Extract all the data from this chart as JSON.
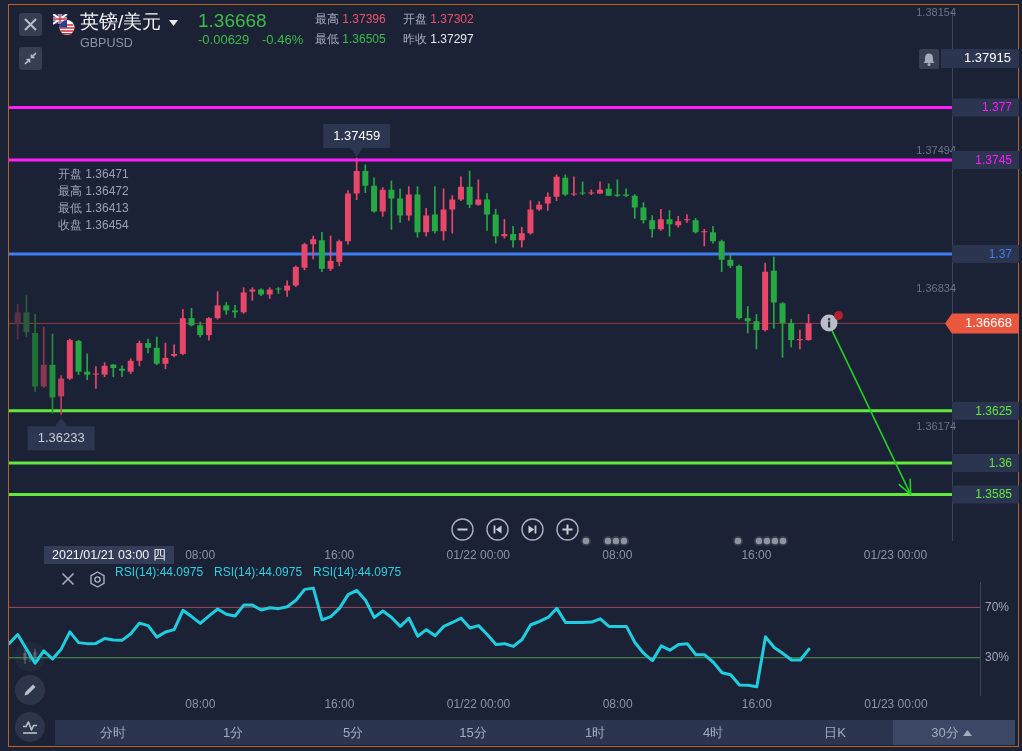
{
  "chart_data": [
    {
      "type": "candlestick",
      "title": "英镑/美元",
      "subtitle": "GBPUSD",
      "x": [
        "2021-01-20T21:30",
        "2021-01-20T22:00",
        "2021-01-20T22:30",
        "2021-01-20T23:00",
        "2021-01-20T23:30",
        "2021-01-21T00:00",
        "2021-01-21T00:30",
        "2021-01-21T01:00",
        "2021-01-21T01:30",
        "2021-01-21T02:00",
        "2021-01-21T02:30",
        "2021-01-21T03:00",
        "2021-01-21T03:30",
        "2021-01-21T04:00",
        "2021-01-21T04:30",
        "2021-01-21T05:00",
        "2021-01-21T05:30",
        "2021-01-21T06:00",
        "2021-01-21T06:30",
        "2021-01-21T07:00",
        "2021-01-21T07:30",
        "2021-01-21T08:00",
        "2021-01-21T08:30",
        "2021-01-21T09:00",
        "2021-01-21T09:30",
        "2021-01-21T10:00",
        "2021-01-21T10:30",
        "2021-01-21T11:00",
        "2021-01-21T11:30",
        "2021-01-21T12:00",
        "2021-01-21T12:30",
        "2021-01-21T13:00",
        "2021-01-21T13:30",
        "2021-01-21T14:00",
        "2021-01-21T14:30",
        "2021-01-21T15:00",
        "2021-01-21T15:30",
        "2021-01-21T16:00",
        "2021-01-21T16:30",
        "2021-01-21T17:00",
        "2021-01-21T17:30",
        "2021-01-21T18:00",
        "2021-01-21T18:30",
        "2021-01-21T19:00",
        "2021-01-21T19:30",
        "2021-01-21T20:00",
        "2021-01-21T20:30",
        "2021-01-21T21:00",
        "2021-01-21T21:30",
        "2021-01-21T22:00",
        "2021-01-21T22:30",
        "2021-01-21T23:00",
        "2021-01-21T23:30",
        "2021-01-22T00:00",
        "2021-01-22T00:30",
        "2021-01-22T01:00",
        "2021-01-22T01:30",
        "2021-01-22T02:00",
        "2021-01-22T02:30",
        "2021-01-22T03:00",
        "2021-01-22T03:30",
        "2021-01-22T04:00",
        "2021-01-22T04:30",
        "2021-01-22T05:00",
        "2021-01-22T05:30",
        "2021-01-22T06:00",
        "2021-01-22T06:30",
        "2021-01-22T07:00",
        "2021-01-22T07:30",
        "2021-01-22T08:00",
        "2021-01-22T08:30",
        "2021-01-22T09:00",
        "2021-01-22T09:30",
        "2021-01-22T10:00",
        "2021-01-22T10:30",
        "2021-01-22T11:00",
        "2021-01-22T11:30",
        "2021-01-22T12:00",
        "2021-01-22T12:30",
        "2021-01-22T13:00",
        "2021-01-22T13:30",
        "2021-01-22T14:00",
        "2021-01-22T14:30",
        "2021-01-22T15:00",
        "2021-01-22T15:30",
        "2021-01-22T16:00",
        "2021-01-22T16:30",
        "2021-01-22T17:00",
        "2021-01-22T17:30",
        "2021-01-22T18:00",
        "2021-01-22T18:30",
        "2021-01-22T19:00"
      ],
      "ohlc": [
        [
          1.36664,
          1.36759,
          1.36593,
          1.36721
        ],
        [
          1.36721,
          1.36801,
          1.36603,
          1.36626
        ],
        [
          1.36622,
          1.36711,
          1.36343,
          1.36366
        ],
        [
          1.36366,
          1.3665,
          1.36361,
          1.3647
        ],
        [
          1.3647,
          1.36617,
          1.36238,
          1.36314
        ],
        [
          1.36319,
          1.36418,
          1.36233,
          1.36404
        ],
        [
          1.36404,
          1.36593,
          1.36399,
          1.36588
        ],
        [
          1.36584,
          1.36588,
          1.36423,
          1.36437
        ],
        [
          1.36437,
          1.36522,
          1.36399,
          1.36423
        ],
        [
          1.36423,
          1.36461,
          1.36357,
          1.36428
        ],
        [
          1.36423,
          1.3648,
          1.36413,
          1.36465
        ],
        [
          1.36471,
          1.36472,
          1.36413,
          1.36454
        ],
        [
          1.36451,
          1.36465,
          1.36413,
          1.36442
        ],
        [
          1.36437,
          1.36499,
          1.36428,
          1.36489
        ],
        [
          1.36489,
          1.36584,
          1.36465,
          1.36574
        ],
        [
          1.36574,
          1.36593,
          1.36527,
          1.36551
        ],
        [
          1.36551,
          1.36603,
          1.3647,
          1.36475
        ],
        [
          1.36475,
          1.36574,
          1.36451,
          1.36503
        ],
        [
          1.36513,
          1.36565,
          1.36508,
          1.36522
        ],
        [
          1.36522,
          1.36735,
          1.36518,
          1.36693
        ],
        [
          1.36693,
          1.3674,
          1.36655,
          1.36659
        ],
        [
          1.36659,
          1.36674,
          1.36603,
          1.36612
        ],
        [
          1.36612,
          1.36697,
          1.36588,
          1.36693
        ],
        [
          1.36693,
          1.3682,
          1.36688,
          1.36754
        ],
        [
          1.36754,
          1.36768,
          1.36711,
          1.3673
        ],
        [
          1.3673,
          1.36754,
          1.36697,
          1.36721
        ],
        [
          1.36721,
          1.36839,
          1.36716,
          1.36816
        ],
        [
          1.3682,
          1.36839,
          1.36778,
          1.3683
        ],
        [
          1.3683,
          1.36834,
          1.36801,
          1.36806
        ],
        [
          1.36806,
          1.36839,
          1.36787,
          1.3683
        ],
        [
          1.36834,
          1.36839,
          1.36811,
          1.3683
        ],
        [
          1.36825,
          1.36872,
          1.36797,
          1.36849
        ],
        [
          1.36849,
          1.36943,
          1.36844,
          1.36938
        ],
        [
          1.36934,
          1.37052,
          1.36924,
          1.37047
        ],
        [
          1.37047,
          1.37085,
          1.36976,
          1.37071
        ],
        [
          1.37066,
          1.37104,
          1.36915,
          1.36929
        ],
        [
          1.36929,
          1.37085,
          1.3692,
          1.36967
        ],
        [
          1.36962,
          1.37066,
          1.36943,
          1.37061
        ],
        [
          1.37061,
          1.37303,
          1.37047,
          1.37289
        ],
        [
          1.37289,
          1.37459,
          1.3726,
          1.37397
        ],
        [
          1.37397,
          1.37426,
          1.37293,
          1.37326
        ],
        [
          1.37326,
          1.37364,
          1.37199,
          1.37203
        ],
        [
          1.37203,
          1.37317,
          1.3718,
          1.37307
        ],
        [
          1.37307,
          1.3735,
          1.37118,
          1.37265
        ],
        [
          1.37265,
          1.37312,
          1.37151,
          1.37184
        ],
        [
          1.37184,
          1.37322,
          1.37161,
          1.37284
        ],
        [
          1.37284,
          1.37322,
          1.3708,
          1.37104
        ],
        [
          1.37104,
          1.37218,
          1.37085,
          1.37184
        ],
        [
          1.37189,
          1.37322,
          1.37099,
          1.37109
        ],
        [
          1.37109,
          1.37312,
          1.37066,
          1.37213
        ],
        [
          1.37213,
          1.37279,
          1.37099,
          1.3726
        ],
        [
          1.3726,
          1.37369,
          1.37255,
          1.37322
        ],
        [
          1.37322,
          1.37397,
          1.37222,
          1.37236
        ],
        [
          1.37236,
          1.37355,
          1.37232,
          1.3726
        ],
        [
          1.3726,
          1.37289,
          1.37113,
          1.37189
        ],
        [
          1.37189,
          1.37213,
          1.37052,
          1.37085
        ],
        [
          1.37085,
          1.37166,
          1.37076,
          1.37095
        ],
        [
          1.37095,
          1.37132,
          1.37033,
          1.37066
        ],
        [
          1.37066,
          1.37128,
          1.37033,
          1.37099
        ],
        [
          1.37099,
          1.37255,
          1.37095,
          1.37213
        ],
        [
          1.37213,
          1.37251,
          1.37208,
          1.37236
        ],
        [
          1.37241,
          1.37293,
          1.37208,
          1.37274
        ],
        [
          1.37274,
          1.37378,
          1.37255,
          1.37369
        ],
        [
          1.37364,
          1.37378,
          1.37279,
          1.37284
        ],
        [
          1.37284,
          1.37369,
          1.37279,
          1.37289
        ],
        [
          1.37293,
          1.37345,
          1.37284,
          1.37289
        ],
        [
          1.37289,
          1.37307,
          1.37284,
          1.37293
        ],
        [
          1.37289,
          1.37345,
          1.37289,
          1.37307
        ],
        [
          1.37312,
          1.37336,
          1.37279,
          1.37279
        ],
        [
          1.37284,
          1.37355,
          1.37274,
          1.37279
        ],
        [
          1.37284,
          1.37312,
          1.37274,
          1.37279
        ],
        [
          1.37279,
          1.37284,
          1.3717,
          1.37222
        ],
        [
          1.37222,
          1.37246,
          1.37147,
          1.37161
        ],
        [
          1.37161,
          1.37184,
          1.3708,
          1.37118
        ],
        [
          1.37118,
          1.37213,
          1.37113,
          1.37166
        ],
        [
          1.37166,
          1.37208,
          1.37085,
          1.37142
        ],
        [
          1.37137,
          1.3718,
          1.37128,
          1.37156
        ],
        [
          1.37161,
          1.37189,
          1.37151,
          1.37166
        ],
        [
          1.37161,
          1.3717,
          1.37099,
          1.37104
        ],
        [
          1.37104,
          1.37118,
          1.37038,
          1.37109
        ],
        [
          1.37104,
          1.37132,
          1.37052,
          1.37061
        ],
        [
          1.37061,
          1.37066,
          1.36915,
          1.36972
        ],
        [
          1.36972,
          1.37,
          1.36934,
          1.36943
        ],
        [
          1.36943,
          1.36948,
          1.36688,
          1.36693
        ],
        [
          1.36693,
          1.36749,
          1.36622,
          1.36678
        ],
        [
          1.36678,
          1.36711,
          1.36546,
          1.36636
        ],
        [
          1.36636,
          1.36957,
          1.36631,
          1.36915
        ],
        [
          1.3692,
          1.36986,
          1.36645,
          1.36768
        ],
        [
          1.36764,
          1.36768,
          1.36505,
          1.36669
        ],
        [
          1.36669,
          1.36688,
          1.36555,
          1.36588
        ],
        [
          1.36588,
          1.36636,
          1.36546,
          1.36593
        ],
        [
          1.36588,
          1.36711,
          1.36588,
          1.36668
        ]
      ],
      "colors": [
        "#5e3044",
        "#2b5a3c",
        "#1f7036",
        "#8a3752",
        "#22903c",
        "#c0415f",
        "#e8476a",
        "#26a843",
        "#26a843",
        "#e8476a",
        "#e8476a",
        "#26a843",
        "#26a843",
        "#e8476a",
        "#e8476a",
        "#26a843",
        "#26a843",
        "#e8476a",
        "#e8476a",
        "#e8476a",
        "#26a843",
        "#26a843",
        "#e8476a",
        "#e8476a",
        "#26a843",
        "#26a843",
        "#e8476a",
        "#e8476a",
        "#26a843",
        "#e8476a",
        "#26a843",
        "#e8476a",
        "#e8476a",
        "#e8476a",
        "#e8476a",
        "#26a843",
        "#e8476a",
        "#e8476a",
        "#e8476a",
        "#e8476a",
        "#26a843",
        "#26a843",
        "#e8476a",
        "#26a843",
        "#26a843",
        "#e8476a",
        "#26a843",
        "#e8476a",
        "#26a843",
        "#e8476a",
        "#e8476a",
        "#e8476a",
        "#26a843",
        "#e8476a",
        "#26a843",
        "#26a843",
        "#e8476a",
        "#26a843",
        "#e8476a",
        "#e8476a",
        "#e8476a",
        "#e8476a",
        "#e8476a",
        "#26a843",
        "#e8476a",
        "#26a843",
        "#e8476a",
        "#e8476a",
        "#26a843",
        "#26a843",
        "#26a843",
        "#26a843",
        "#26a843",
        "#26a843",
        "#e8476a",
        "#26a843",
        "#e8476a",
        "#e8476a",
        "#26a843",
        "#e8476a",
        "#26a843",
        "#26a843",
        "#26a843",
        "#26a843",
        "#26a843",
        "#26a843",
        "#e8476a",
        "#26a843",
        "#26a843",
        "#26a843",
        "#e8476a",
        "#e8476a"
      ],
      "xlim": [
        "2021-01-20T21:00",
        "2021-01-23T03:15"
      ],
      "xticks": [
        {
          "value": "2021-01-21T08:00",
          "label": "08:00"
        },
        {
          "value": "2021-01-21T16:00",
          "label": "16:00"
        },
        {
          "value": "2021-01-22T00:00",
          "label": "01/22 00:00"
        },
        {
          "value": "2021-01-22T08:00",
          "label": "08:00"
        },
        {
          "value": "2021-01-22T16:00",
          "label": "16:00"
        },
        {
          "value": "2021-01-23T00:00",
          "label": "01/23 00:00"
        }
      ],
      "ylim": [
        1.35632,
        1.38164
      ],
      "yticks": [
        1.36174,
        1.36834,
        1.37494,
        1.38154
      ],
      "ref_lines": [
        {
          "axis": "y",
          "value": 1.377,
          "label": "1.377",
          "color": "#ff1cff"
        },
        {
          "axis": "y",
          "value": 1.3745,
          "label": "1.3745",
          "color": "#ff1cff"
        },
        {
          "axis": "y",
          "value": 1.37,
          "label": "1.37",
          "color": "#3f7ef2"
        },
        {
          "axis": "y",
          "value": 1.36668,
          "label": "1.36668",
          "color": "#e9573f"
        },
        {
          "axis": "y",
          "value": 1.3625,
          "label": "1.3625",
          "color": "#62e83c"
        },
        {
          "axis": "y",
          "value": 1.36,
          "label": "1.36",
          "color": "#62e83c"
        },
        {
          "axis": "y",
          "value": 1.3585,
          "label": "1.3585",
          "color": "#62e83c"
        }
      ],
      "annotations": [
        "1.36668",
        "-0.00629",
        "-0.46%",
        "最高 1.37396",
        "开盘 1.37302",
        "最低 1.36505",
        "昨收 1.37297",
        "1.37915",
        {
          "text": "1.37459",
          "x": "2021-01-21T17:00",
          "y": 1.37459
        },
        {
          "text": "1.36233",
          "x": "2021-01-21T00:00",
          "y": 1.36233
        },
        "开盘 1.36471",
        "最高 1.36472",
        "最低 1.36413",
        "收盘 1.36454",
        "2021/01/21 03:00 四"
      ]
    },
    {
      "type": "line",
      "x": [
        "2021-01-20T21:00",
        "2021-01-20T21:30",
        "2021-01-20T22:00",
        "2021-01-20T22:30",
        "2021-01-20T23:00",
        "2021-01-20T23:30",
        "2021-01-21T00:00",
        "2021-01-21T00:30",
        "2021-01-21T01:00",
        "2021-01-21T01:30",
        "2021-01-21T02:00",
        "2021-01-21T02:30",
        "2021-01-21T03:00",
        "2021-01-21T03:30",
        "2021-01-21T04:00",
        "2021-01-21T04:30",
        "2021-01-21T05:00",
        "2021-01-21T05:30",
        "2021-01-21T06:00",
        "2021-01-21T06:30",
        "2021-01-21T07:00",
        "2021-01-21T07:30",
        "2021-01-21T08:00",
        "2021-01-21T08:30",
        "2021-01-21T09:00",
        "2021-01-21T09:30",
        "2021-01-21T10:00",
        "2021-01-21T10:30",
        "2021-01-21T11:00",
        "2021-01-21T11:30",
        "2021-01-21T12:00",
        "2021-01-21T12:30",
        "2021-01-21T13:00",
        "2021-01-21T13:30",
        "2021-01-21T14:00",
        "2021-01-21T14:30",
        "2021-01-21T15:00",
        "2021-01-21T15:30",
        "2021-01-21T16:00",
        "2021-01-21T16:30",
        "2021-01-21T17:00",
        "2021-01-21T17:30",
        "2021-01-21T18:00",
        "2021-01-21T18:30",
        "2021-01-21T19:00",
        "2021-01-21T19:30",
        "2021-01-21T20:00",
        "2021-01-21T20:30",
        "2021-01-21T21:00",
        "2021-01-21T21:30",
        "2021-01-21T22:00",
        "2021-01-21T22:30",
        "2021-01-21T23:00",
        "2021-01-21T23:30",
        "2021-01-22T00:00",
        "2021-01-22T00:30",
        "2021-01-22T01:00",
        "2021-01-22T01:30",
        "2021-01-22T02:00",
        "2021-01-22T02:30",
        "2021-01-22T03:00",
        "2021-01-22T03:30",
        "2021-01-22T04:00",
        "2021-01-22T04:30",
        "2021-01-22T05:00",
        "2021-01-22T05:30",
        "2021-01-22T06:00",
        "2021-01-22T06:30",
        "2021-01-22T07:00",
        "2021-01-22T07:30",
        "2021-01-22T08:00",
        "2021-01-22T08:30",
        "2021-01-22T09:00",
        "2021-01-22T09:30",
        "2021-01-22T10:00",
        "2021-01-22T10:30",
        "2021-01-22T11:00",
        "2021-01-22T11:30",
        "2021-01-22T12:00",
        "2021-01-22T12:30",
        "2021-01-22T13:00",
        "2021-01-22T13:30",
        "2021-01-22T14:00",
        "2021-01-22T14:30",
        "2021-01-22T15:00",
        "2021-01-22T15:30",
        "2021-01-22T16:00",
        "2021-01-22T16:30",
        "2021-01-22T17:00",
        "2021-01-22T17:30",
        "2021-01-22T18:00",
        "2021-01-22T18:30",
        "2021-01-22T19:00"
      ],
      "series": [
        {
          "color": "#1fcde0",
          "values": [
            41.2,
            48.4,
            37,
            25.6,
            35.5,
            29,
            36.8,
            50.5,
            42,
            41.2,
            41.4,
            45.3,
            44.1,
            43.8,
            49,
            57.5,
            55.5,
            46.4,
            50.5,
            52.3,
            67.7,
            62.7,
            57.3,
            63.2,
            68.7,
            64.5,
            63.2,
            71.8,
            71.8,
            67.9,
            69.7,
            69,
            70.5,
            75.7,
            84.3,
            85.3,
            60.1,
            62.7,
            69.2,
            80.1,
            83.5,
            75.7,
            62,
            67.1,
            62,
            54.9,
            61.4,
            47.1,
            52.3,
            47.4,
            54.9,
            58,
            61.4,
            53.6,
            55.5,
            48.4,
            40.6,
            41.2,
            39,
            44.5,
            56.2,
            58.8,
            62,
            69.2,
            58,
            58,
            58,
            58.3,
            60.9,
            54.9,
            54.9,
            54.9,
            41.9,
            33.4,
            27.7,
            39.4,
            36,
            40.6,
            41.2,
            32.3,
            32.3,
            26.4,
            18.1,
            16.5,
            8.4,
            8.2,
            6.9,
            46.6,
            38.1,
            33.4,
            28.2,
            28.2,
            36.8
          ]
        }
      ],
      "xlim": [
        "2021-01-20T21:00",
        "2021-01-23T04:50"
      ],
      "xticks": [
        {
          "value": "2021-01-21T08:00",
          "label": "08:00"
        },
        {
          "value": "2021-01-21T16:00",
          "label": "16:00"
        },
        {
          "value": "2021-01-22T00:00",
          "label": "01/22 00:00"
        },
        {
          "value": "2021-01-22T08:00",
          "label": "08:00"
        },
        {
          "value": "2021-01-22T16:00",
          "label": "16:00"
        },
        {
          "value": "2021-01-23T00:00",
          "label": "01/23 00:00"
        }
      ],
      "ylim": [
        0,
        90
      ],
      "yticks": [
        {
          "value": 70,
          "label": "70%"
        },
        {
          "value": 30,
          "label": "30%"
        }
      ],
      "ref_lines": [
        {
          "axis": "y",
          "value": 70,
          "color": "#9c4a58"
        },
        {
          "axis": "y",
          "value": 30,
          "color": "#4a9a4e"
        }
      ],
      "annotations": [
        "RSI(14):44.0975",
        "RSI(14):44.0975",
        "RSI(14):44.0975",
        "分时",
        "1分",
        "5分",
        "15分",
        "1时",
        "4时",
        "日K",
        "30分"
      ]
    }
  ]
}
